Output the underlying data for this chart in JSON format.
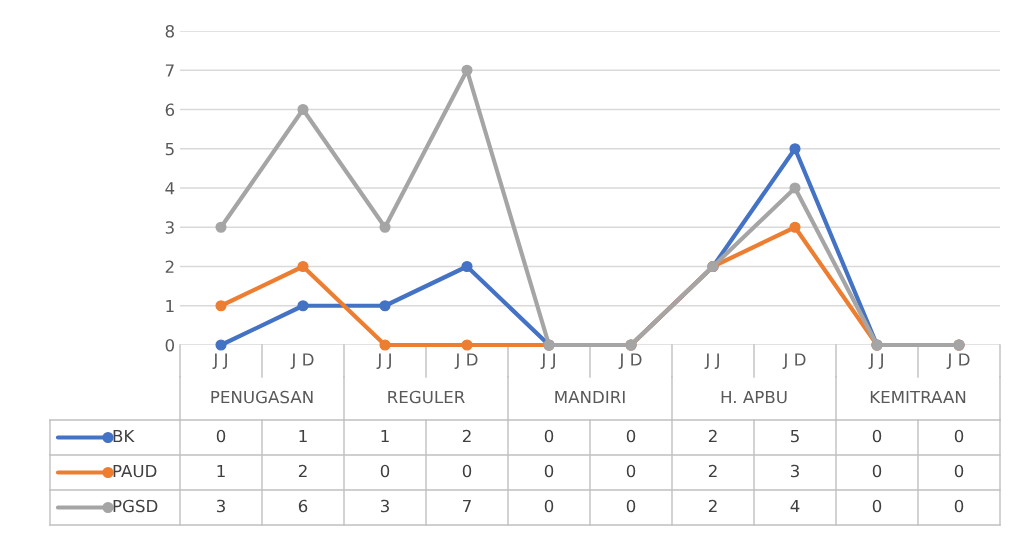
{
  "chart_data": {
    "type": "line",
    "categories": [
      "J J",
      "J D",
      "J J",
      "J D",
      "J J",
      "J D",
      "J J",
      "J D",
      "J J",
      "J D"
    ],
    "annotations": [
      "PENUGASAN",
      "REGULER",
      "MANDIRI",
      "H. APBU",
      "KEMITRAAN"
    ],
    "series": [
      {
        "name": "BK",
        "color": "#4472c4",
        "values": [
          0,
          1,
          1,
          2,
          0,
          0,
          2,
          5,
          0,
          0
        ]
      },
      {
        "name": "PAUD",
        "color": "#ed7d31",
        "values": [
          1,
          2,
          0,
          0,
          0,
          0,
          2,
          3,
          0,
          0
        ]
      },
      {
        "name": "PGSD",
        "color": "#a5a5a5",
        "values": [
          3,
          6,
          3,
          7,
          0,
          0,
          2,
          4,
          0,
          0
        ]
      }
    ],
    "ylim": [
      0,
      8
    ],
    "yticks": [
      0,
      1,
      2,
      3,
      4,
      5,
      6,
      7,
      8
    ],
    "grid": "y",
    "marker": "circle",
    "line_style": "solid",
    "data_labels": true,
    "legend": "bottom left"
  }
}
